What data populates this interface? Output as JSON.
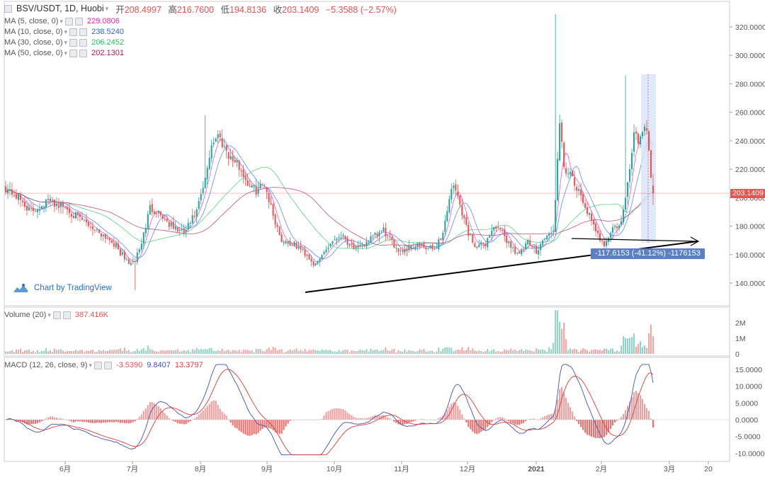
{
  "header": {
    "symbol": "BSV/USDT, 1D, Huobi",
    "open_label": "开",
    "open": "208.4997",
    "high_label": "高",
    "high": "216.7600",
    "low_label": "低",
    "low": "194.8136",
    "close_label": "收",
    "close": "203.1409",
    "change": "−5.3588 (−2.57%)"
  },
  "indicators": [
    {
      "label": "MA (5, close, 0)",
      "value": "229.0806",
      "color": "#e91ec7"
    },
    {
      "label": "MA (10, close, 0)",
      "value": "238.5240",
      "color": "#2962ff"
    },
    {
      "label": "MA (30, close, 0)",
      "value": "206.2452",
      "color": "#22c55e"
    },
    {
      "label": "MA (50, close, 0)",
      "value": "202.1301",
      "color": "#b0145a"
    }
  ],
  "volume_legend": {
    "label": "Volume (20)",
    "value": "387.416K",
    "color": "#e25455"
  },
  "macd_legend": {
    "label": "MACD (12, 26, close, 9)",
    "hist": "-3.5390",
    "macd": "9.8407",
    "signal": "13.3797"
  },
  "price_tag": "203.1409",
  "measurement": "-117.6153 (-41.12%) -1176153",
  "branding": "Chart by TradingView",
  "colors": {
    "up": "#26a69a",
    "down": "#ef5350",
    "macd": "#3f51b5",
    "signal": "#e53935"
  },
  "chart_data": {
    "type": "candlestick",
    "title": "BSV/USDT, 1D, Huobi",
    "x_axis_labels": [
      "6月",
      "7月",
      "8月",
      "9月",
      "10月",
      "11月",
      "12月",
      "2021",
      "2月",
      "3月",
      "20"
    ],
    "price_axis": {
      "ticks": [
        "140.0000",
        "160.0000",
        "180.0000",
        "200.0000",
        "220.0000",
        "240.0000",
        "260.0000",
        "280.0000",
        "300.0000",
        "320.0000"
      ],
      "range": [
        130,
        333
      ]
    },
    "volume_axis": {
      "ticks": [
        "0",
        "1M",
        "2M"
      ],
      "range": [
        0,
        2800000
      ]
    },
    "macd_axis": {
      "ticks": [
        "-10.0000",
        "-5.0000",
        "0.0000",
        "5.0000",
        "10.0000",
        "15.0000"
      ],
      "range": [
        -11,
        17
      ]
    },
    "series": [
      {
        "name": "BSV/USDT",
        "waypoints": [
          [
            0,
            207
          ],
          [
            6,
            200
          ],
          [
            12,
            190
          ],
          [
            20,
            198
          ],
          [
            28,
            193
          ],
          [
            34,
            186
          ],
          [
            42,
            178
          ],
          [
            50,
            170
          ],
          [
            56,
            157
          ],
          [
            60,
            153
          ],
          [
            64,
            168
          ],
          [
            68,
            193
          ],
          [
            72,
            190
          ],
          [
            78,
            180
          ],
          [
            84,
            175
          ],
          [
            90,
            190
          ],
          [
            94,
            212
          ],
          [
            97,
            238
          ],
          [
            100,
            244
          ],
          [
            103,
            236
          ],
          [
            106,
            228
          ],
          [
            110,
            222
          ],
          [
            114,
            210
          ],
          [
            118,
            205
          ],
          [
            122,
            210
          ],
          [
            126,
            188
          ],
          [
            130,
            170
          ],
          [
            134,
            168
          ],
          [
            138,
            165
          ],
          [
            142,
            160
          ],
          [
            146,
            152
          ],
          [
            150,
            162
          ],
          [
            154,
            170
          ],
          [
            158,
            174
          ],
          [
            162,
            168
          ],
          [
            166,
            163
          ],
          [
            170,
            169
          ],
          [
            174,
            173
          ],
          [
            178,
            177
          ],
          [
            182,
            168
          ],
          [
            186,
            163
          ],
          [
            190,
            165
          ],
          [
            194,
            167
          ],
          [
            198,
            164
          ],
          [
            202,
            164
          ],
          [
            206,
            175
          ],
          [
            210,
            208
          ],
          [
            212,
            205
          ],
          [
            214,
            195
          ],
          [
            218,
            175
          ],
          [
            222,
            165
          ],
          [
            226,
            168
          ],
          [
            230,
            180
          ],
          [
            234,
            175
          ],
          [
            238,
            166
          ],
          [
            242,
            160
          ],
          [
            246,
            168
          ],
          [
            250,
            163
          ],
          [
            254,
            172
          ],
          [
            258,
            176
          ],
          [
            261,
            250
          ],
          [
            263,
            222
          ],
          [
            266,
            215
          ],
          [
            270,
            203
          ],
          [
            274,
            191
          ],
          [
            278,
            175
          ],
          [
            282,
            168
          ],
          [
            286,
            178
          ],
          [
            290,
            182
          ],
          [
            294,
            218
          ],
          [
            296,
            248
          ],
          [
            298,
            240
          ],
          [
            300,
            248
          ],
          [
            302,
            250
          ],
          [
            304,
            215
          ],
          [
            305,
            203
          ]
        ]
      },
      {
        "name": "MA 5",
        "latest": 229.0806
      },
      {
        "name": "MA 10",
        "latest": 238.524
      },
      {
        "name": "MA 30",
        "latest": 206.2452
      },
      {
        "name": "MA 50",
        "latest": 202.1301
      },
      {
        "name": "Volume",
        "latest": 387416
      },
      {
        "name": "MACD",
        "latest_hist": -3.539,
        "latest_macd": 9.8407,
        "latest_signal": 13.3797
      }
    ],
    "spikes": [
      [
        259,
        329
      ],
      [
        94,
        258
      ],
      [
        292,
        286
      ],
      [
        61,
        135
      ]
    ],
    "annotations": [
      "Ascending trendline from ~141 (late Sep) to ~166 (late Feb)",
      "Measurement: -117.6153 (-41.12%)",
      "Last price line at 203.1409"
    ]
  }
}
